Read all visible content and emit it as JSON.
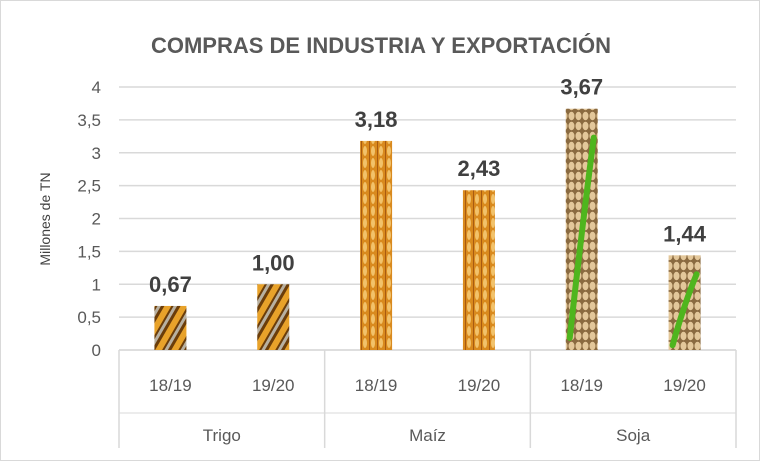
{
  "chart_data": {
    "type": "bar",
    "title": "COMPRAS DE INDUSTRIA Y EXPORTACIÓN",
    "ylabel": "Millones de TN",
    "xlabel": "",
    "ylim": [
      0,
      4
    ],
    "yticks": [
      "0",
      "0,5",
      "1",
      "1,5",
      "2",
      "2,5",
      "3",
      "3,5",
      "4"
    ],
    "grid": true,
    "groups": [
      {
        "name": "Trigo",
        "texture": "wheat",
        "categories": [
          "18/19",
          "19/20"
        ],
        "values": [
          0.67,
          1.0
        ],
        "labels": [
          "0,67",
          "1,00"
        ]
      },
      {
        "name": "Maíz",
        "texture": "corn",
        "categories": [
          "18/19",
          "19/20"
        ],
        "values": [
          3.18,
          2.43
        ],
        "labels": [
          "3,18",
          "2,43"
        ]
      },
      {
        "name": "Soja",
        "texture": "soy",
        "categories": [
          "18/19",
          "19/20"
        ],
        "values": [
          3.67,
          1.44
        ],
        "labels": [
          "3,67",
          "1,44"
        ]
      }
    ]
  }
}
